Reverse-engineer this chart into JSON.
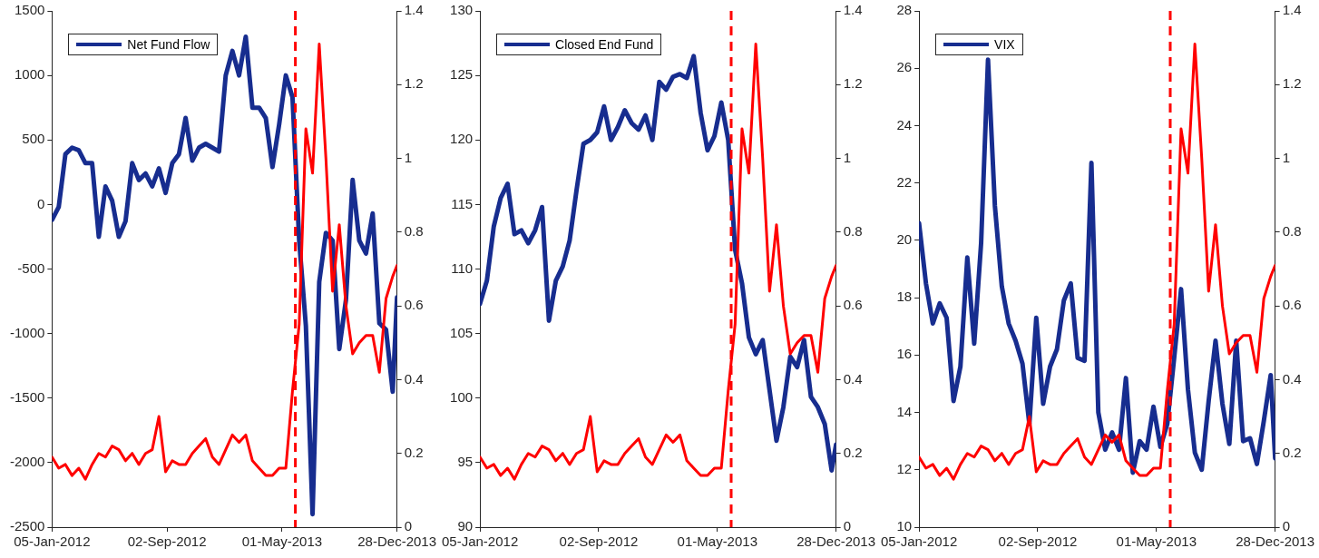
{
  "chart_data": [
    {
      "type": "line",
      "legend": "top left",
      "x": [
        "2012-01-05",
        "2012-01-19",
        "2012-02-02",
        "2012-02-16",
        "2012-03-01",
        "2012-03-15",
        "2012-03-29",
        "2012-04-12",
        "2012-04-26",
        "2012-05-10",
        "2012-05-24",
        "2012-06-07",
        "2012-06-21",
        "2012-07-05",
        "2012-07-19",
        "2012-08-02",
        "2012-08-16",
        "2012-08-30",
        "2012-09-13",
        "2012-09-27",
        "2012-10-11",
        "2012-10-25",
        "2012-11-08",
        "2012-11-22",
        "2012-12-06",
        "2012-12-20",
        "2013-01-03",
        "2013-01-17",
        "2013-01-31",
        "2013-02-14",
        "2013-02-28",
        "2013-03-14",
        "2013-03-28",
        "2013-04-11",
        "2013-04-25",
        "2013-05-09",
        "2013-05-23",
        "2013-06-06",
        "2013-06-20",
        "2013-07-04",
        "2013-07-18",
        "2013-08-01",
        "2013-08-15",
        "2013-08-29",
        "2013-09-12",
        "2013-09-26",
        "2013-10-10",
        "2013-10-24",
        "2013-11-07",
        "2013-11-21",
        "2013-12-05",
        "2013-12-19",
        "2013-12-28"
      ],
      "series": [
        {
          "name": "Net Fund Flow",
          "color": "#172d8f",
          "values": [
            -120,
            -20,
            390,
            440,
            420,
            320,
            320,
            -250,
            140,
            30,
            -250,
            -130,
            320,
            190,
            240,
            140,
            280,
            90,
            320,
            390,
            670,
            340,
            440,
            470,
            440,
            410,
            1000,
            1190,
            1000,
            1300,
            750,
            750,
            670,
            290,
            620,
            1000,
            830,
            -280,
            -940,
            -2400,
            -600,
            -220,
            -280,
            -1120,
            -740,
            190,
            -280,
            -380,
            -70,
            -920,
            -970,
            -1450,
            -720
          ]
        },
        {
          "color": "#ff0000",
          "axis": "y2",
          "values": [
            0.19,
            0.16,
            0.17,
            0.14,
            0.16,
            0.13,
            0.17,
            0.2,
            0.19,
            0.22,
            0.21,
            0.18,
            0.2,
            0.17,
            0.2,
            0.21,
            0.3,
            0.15,
            0.18,
            0.17,
            0.17,
            0.2,
            0.22,
            0.24,
            0.19,
            0.17,
            0.21,
            0.25,
            0.23,
            0.25,
            0.18,
            0.16,
            0.14,
            0.14,
            0.16,
            0.16,
            0.37,
            0.55,
            1.08,
            0.96,
            1.31,
            1.0,
            0.64,
            0.82,
            0.6,
            0.47,
            0.5,
            0.52,
            0.52,
            0.42,
            0.62,
            0.68,
            0.71
          ]
        }
      ],
      "xlim": [
        "2012-01-05",
        "2013-12-28"
      ],
      "xticks": [
        {
          "value": "2012-01-05",
          "label": "05-Jan-2012"
        },
        {
          "value": "2012-09-02",
          "label": "02-Sep-2012"
        },
        {
          "value": "2013-05-01",
          "label": "01-May-2013"
        },
        {
          "value": "2013-12-28",
          "label": "28-Dec-2013"
        }
      ],
      "ylim": [
        -2500,
        1500
      ],
      "yticks": [
        -2500,
        -2000,
        -1500,
        -1000,
        -500,
        0,
        500,
        1000,
        1500
      ],
      "y2lim": [
        0,
        1.4
      ],
      "y2ticks": [
        0,
        0.2,
        0.4,
        0.6,
        0.8,
        1,
        1.2,
        1.4
      ],
      "ref_lines": [
        {
          "axis": "x",
          "value": "2013-05-29",
          "color": "#ff0000",
          "line_style": "dashed"
        }
      ]
    },
    {
      "type": "line",
      "legend": "top left",
      "x": [
        "2012-01-05",
        "2012-01-19",
        "2012-02-02",
        "2012-02-16",
        "2012-03-01",
        "2012-03-15",
        "2012-03-29",
        "2012-04-12",
        "2012-04-26",
        "2012-05-10",
        "2012-05-24",
        "2012-06-07",
        "2012-06-21",
        "2012-07-05",
        "2012-07-19",
        "2012-08-02",
        "2012-08-16",
        "2012-08-30",
        "2012-09-13",
        "2012-09-27",
        "2012-10-11",
        "2012-10-25",
        "2012-11-08",
        "2012-11-22",
        "2012-12-06",
        "2012-12-20",
        "2013-01-03",
        "2013-01-17",
        "2013-01-31",
        "2013-02-14",
        "2013-02-28",
        "2013-03-14",
        "2013-03-28",
        "2013-04-11",
        "2013-04-25",
        "2013-05-09",
        "2013-05-23",
        "2013-06-06",
        "2013-06-20",
        "2013-07-04",
        "2013-07-18",
        "2013-08-01",
        "2013-08-15",
        "2013-08-29",
        "2013-09-12",
        "2013-09-26",
        "2013-10-10",
        "2013-10-24",
        "2013-11-07",
        "2013-11-21",
        "2013-12-05",
        "2013-12-19",
        "2013-12-28"
      ],
      "series": [
        {
          "name": "Closed End Fund",
          "color": "#172d8f",
          "values": [
            107.3,
            109.1,
            113.3,
            115.5,
            116.6,
            112.7,
            113.0,
            112.0,
            113.0,
            114.8,
            106.0,
            109.1,
            110.2,
            112.2,
            116.1,
            119.7,
            120.0,
            120.6,
            122.6,
            120.0,
            121.0,
            122.3,
            121.3,
            120.8,
            121.9,
            120.0,
            124.5,
            123.9,
            124.9,
            125.1,
            124.8,
            126.5,
            122.1,
            119.2,
            120.3,
            122.9,
            120.0,
            111.5,
            108.9,
            104.7,
            103.4,
            104.5,
            100.6,
            96.7,
            99.3,
            103.2,
            102.4,
            104.5,
            100.1,
            99.3,
            98.0,
            94.4,
            96.4
          ]
        },
        {
          "color": "#ff0000",
          "axis": "y2",
          "values": [
            0.19,
            0.16,
            0.17,
            0.14,
            0.16,
            0.13,
            0.17,
            0.2,
            0.19,
            0.22,
            0.21,
            0.18,
            0.2,
            0.17,
            0.2,
            0.21,
            0.3,
            0.15,
            0.18,
            0.17,
            0.17,
            0.2,
            0.22,
            0.24,
            0.19,
            0.17,
            0.21,
            0.25,
            0.23,
            0.25,
            0.18,
            0.16,
            0.14,
            0.14,
            0.16,
            0.16,
            0.37,
            0.55,
            1.08,
            0.96,
            1.31,
            1.0,
            0.64,
            0.82,
            0.6,
            0.47,
            0.5,
            0.52,
            0.52,
            0.42,
            0.62,
            0.68,
            0.71
          ]
        }
      ],
      "xlim": [
        "2012-01-05",
        "2013-12-28"
      ],
      "xticks": [
        {
          "value": "2012-01-05",
          "label": "05-Jan-2012"
        },
        {
          "value": "2012-09-02",
          "label": "02-Sep-2012"
        },
        {
          "value": "2013-05-01",
          "label": "01-May-2013"
        },
        {
          "value": "2013-12-28",
          "label": "28-Dec-2013"
        }
      ],
      "ylim": [
        90,
        130
      ],
      "yticks": [
        90,
        95,
        100,
        105,
        110,
        115,
        120,
        125,
        130
      ],
      "y2lim": [
        0,
        1.4
      ],
      "y2ticks": [
        0,
        0.2,
        0.4,
        0.6,
        0.8,
        1,
        1.2,
        1.4
      ],
      "ref_lines": [
        {
          "axis": "x",
          "value": "2013-05-29",
          "color": "#ff0000",
          "line_style": "dashed"
        }
      ]
    },
    {
      "type": "line",
      "legend": "top left",
      "x": [
        "2012-01-05",
        "2012-01-19",
        "2012-02-02",
        "2012-02-16",
        "2012-03-01",
        "2012-03-15",
        "2012-03-29",
        "2012-04-12",
        "2012-04-26",
        "2012-05-10",
        "2012-05-24",
        "2012-06-07",
        "2012-06-21",
        "2012-07-05",
        "2012-07-19",
        "2012-08-02",
        "2012-08-16",
        "2012-08-30",
        "2012-09-13",
        "2012-09-27",
        "2012-10-11",
        "2012-10-25",
        "2012-11-08",
        "2012-11-22",
        "2012-12-06",
        "2012-12-20",
        "2013-01-03",
        "2013-01-17",
        "2013-01-31",
        "2013-02-14",
        "2013-02-28",
        "2013-03-14",
        "2013-03-28",
        "2013-04-11",
        "2013-04-25",
        "2013-05-09",
        "2013-05-23",
        "2013-06-06",
        "2013-06-20",
        "2013-07-04",
        "2013-07-18",
        "2013-08-01",
        "2013-08-15",
        "2013-08-29",
        "2013-09-12",
        "2013-09-26",
        "2013-10-10",
        "2013-10-24",
        "2013-11-07",
        "2013-11-21",
        "2013-12-05",
        "2013-12-19",
        "2013-12-28"
      ],
      "series": [
        {
          "name": "VIX",
          "color": "#172d8f",
          "values": [
            20.6,
            18.5,
            17.1,
            17.8,
            17.3,
            14.4,
            15.6,
            19.4,
            16.4,
            19.9,
            26.3,
            21.2,
            18.4,
            17.1,
            16.5,
            15.7,
            13.6,
            17.3,
            14.3,
            15.6,
            16.2,
            17.9,
            18.5,
            15.9,
            15.8,
            22.7,
            14.0,
            12.7,
            13.3,
            12.7,
            15.2,
            11.9,
            13.0,
            12.7,
            14.2,
            12.8,
            13.6,
            15.9,
            18.3,
            14.8,
            12.6,
            12.0,
            14.4,
            16.5,
            14.3,
            12.9,
            16.5,
            13.0,
            13.1,
            12.2,
            13.7,
            15.3,
            12.4
          ]
        },
        {
          "color": "#ff0000",
          "axis": "y2",
          "values": [
            0.19,
            0.16,
            0.17,
            0.14,
            0.16,
            0.13,
            0.17,
            0.2,
            0.19,
            0.22,
            0.21,
            0.18,
            0.2,
            0.17,
            0.2,
            0.21,
            0.3,
            0.15,
            0.18,
            0.17,
            0.17,
            0.2,
            0.22,
            0.24,
            0.19,
            0.17,
            0.21,
            0.25,
            0.23,
            0.25,
            0.18,
            0.16,
            0.14,
            0.14,
            0.16,
            0.16,
            0.37,
            0.55,
            1.08,
            0.96,
            1.31,
            1.0,
            0.64,
            0.82,
            0.6,
            0.47,
            0.5,
            0.52,
            0.52,
            0.42,
            0.62,
            0.68,
            0.71
          ]
        }
      ],
      "xlim": [
        "2012-01-05",
        "2013-12-28"
      ],
      "xticks": [
        {
          "value": "2012-01-05",
          "label": "05-Jan-2012"
        },
        {
          "value": "2012-09-02",
          "label": "02-Sep-2012"
        },
        {
          "value": "2013-05-01",
          "label": "01-May-2013"
        },
        {
          "value": "2013-12-28",
          "label": "28-Dec-2013"
        }
      ],
      "ylim": [
        10,
        28
      ],
      "yticks": [
        10,
        12,
        14,
        16,
        18,
        20,
        22,
        24,
        26,
        28
      ],
      "y2lim": [
        0,
        1.4
      ],
      "y2ticks": [
        0,
        0.2,
        0.4,
        0.6,
        0.8,
        1,
        1.2,
        1.4
      ],
      "ref_lines": [
        {
          "axis": "x",
          "value": "2013-05-29",
          "color": "#ff0000",
          "line_style": "dashed"
        }
      ]
    }
  ]
}
